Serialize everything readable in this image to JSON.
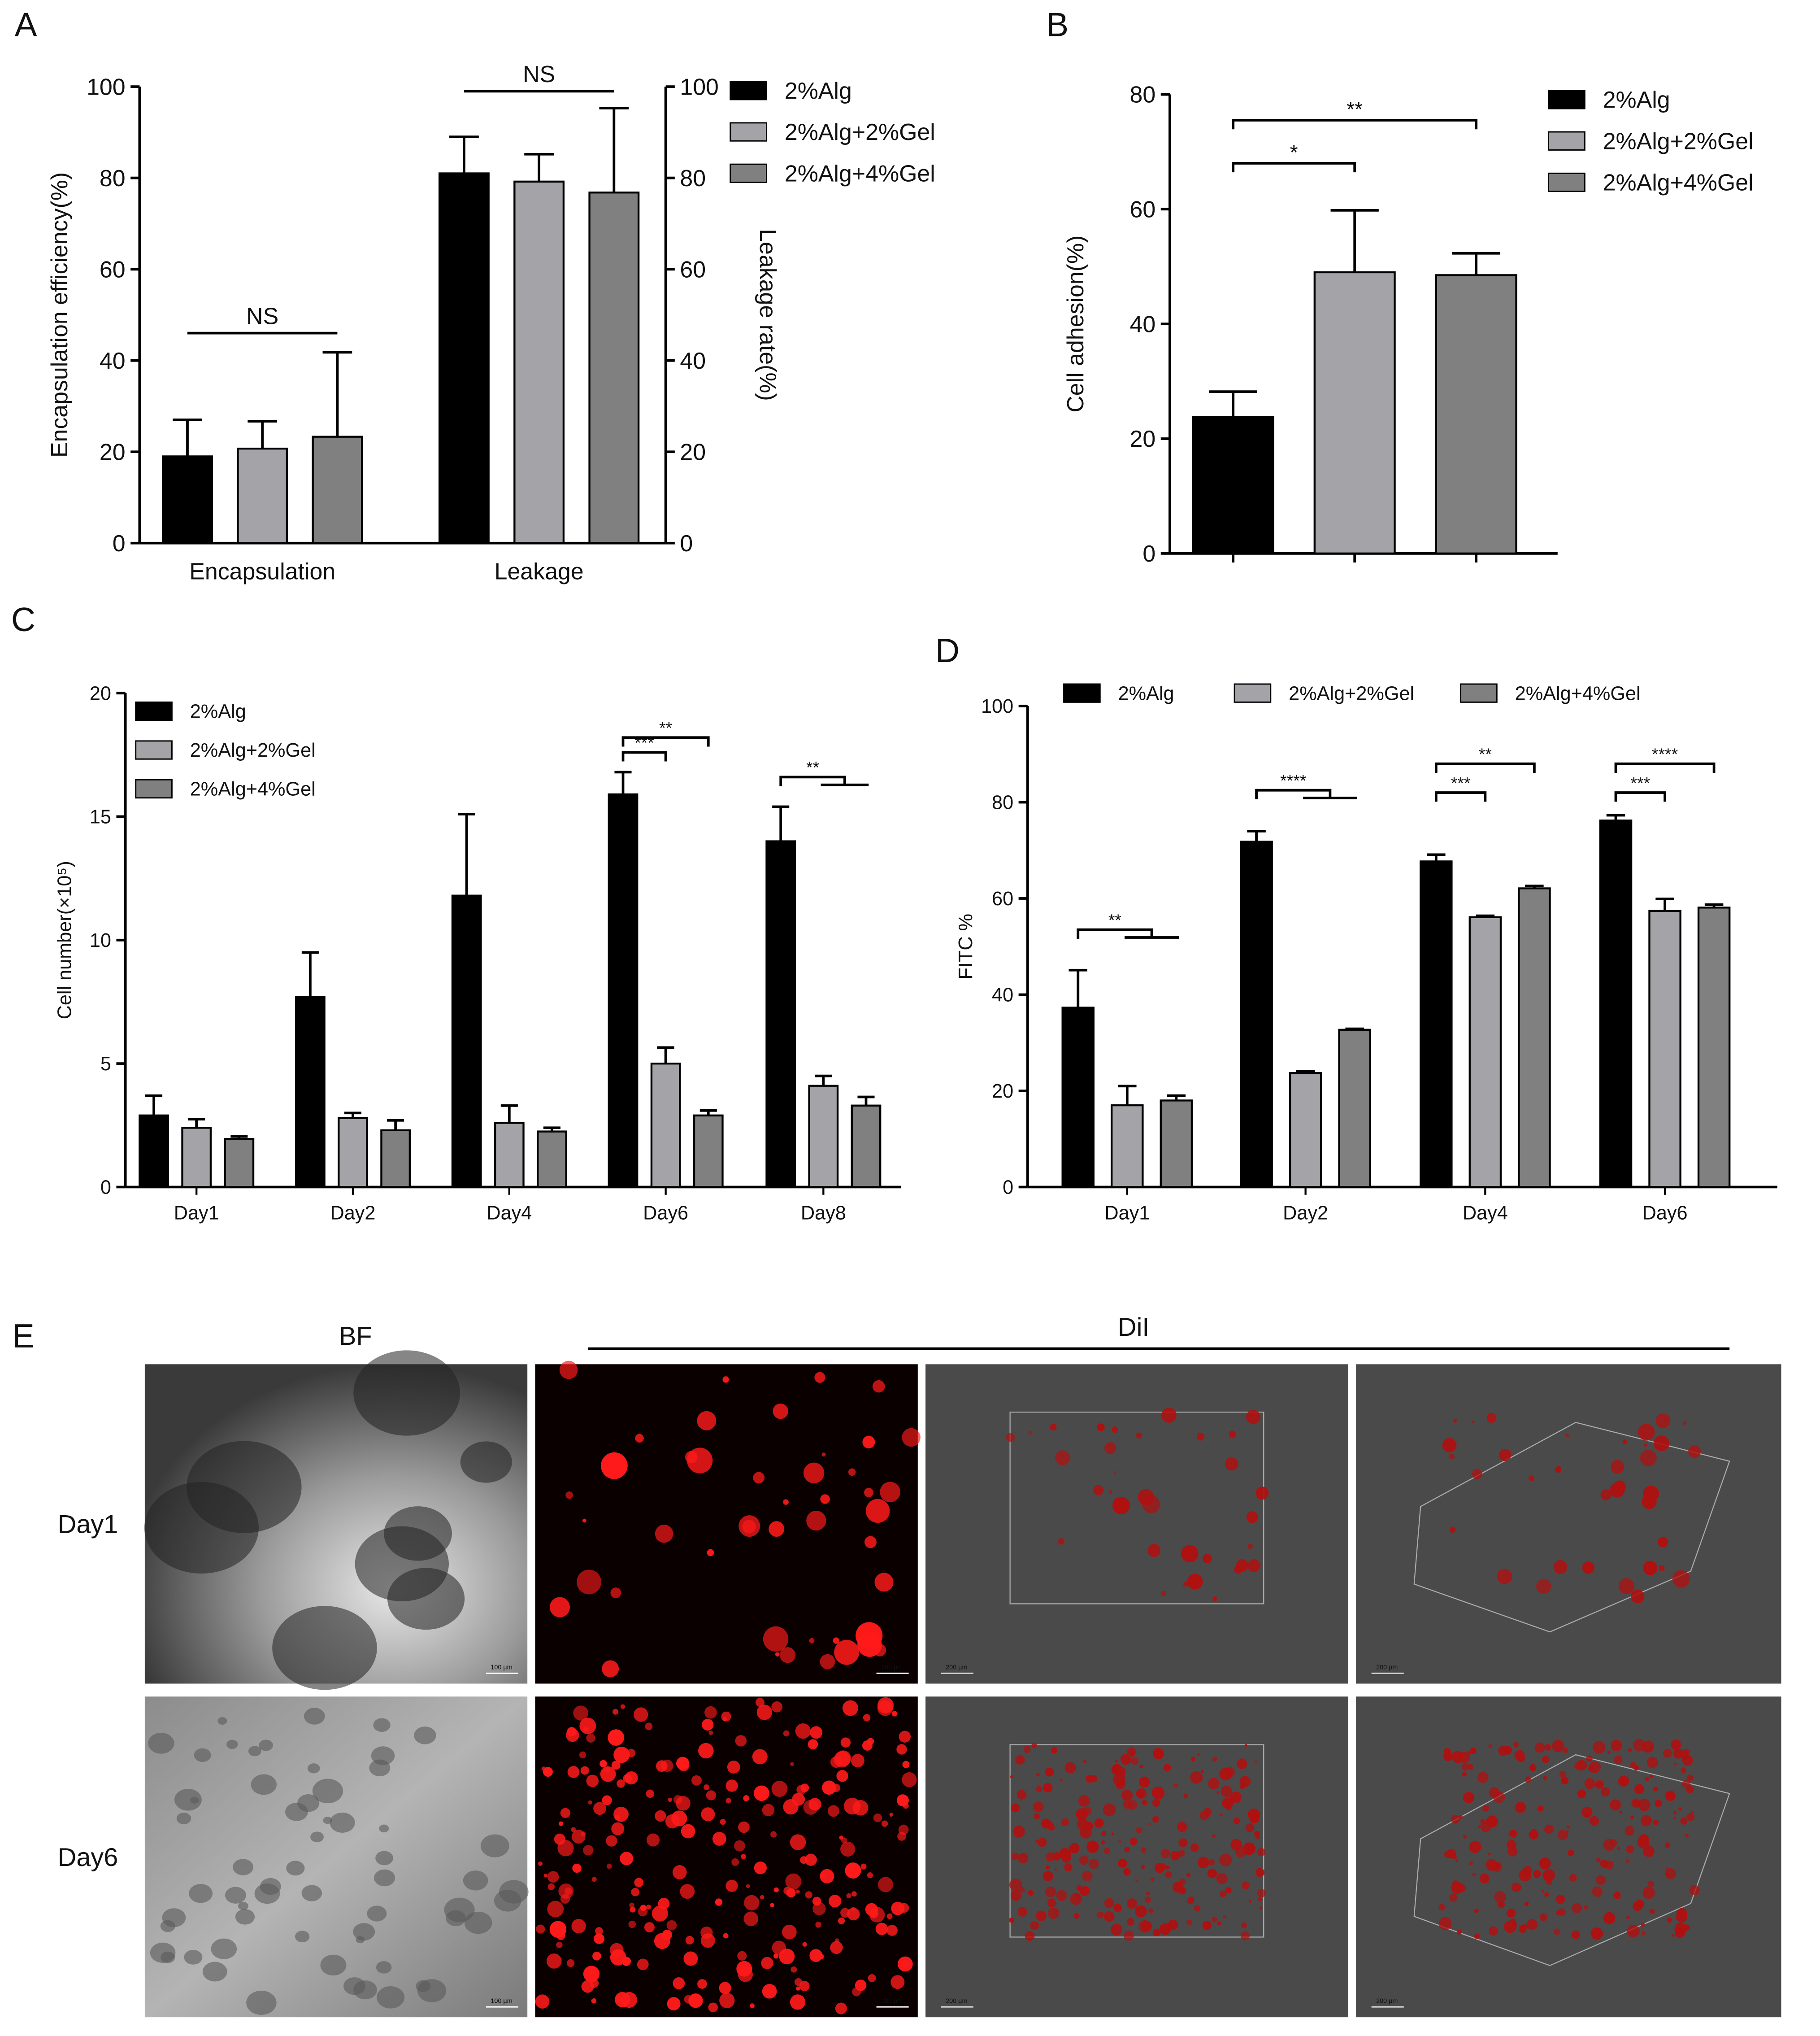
{
  "chart_data": [
    {
      "panel": "A",
      "type": "bar",
      "ylabel": "Encapsulation efficiency(%)",
      "y2label": "Leakage rate(%)",
      "categories": [
        "Encapsulation",
        "Leakage"
      ],
      "series": [
        {
          "name": "2%Alg",
          "color": "#000000",
          "values": [
            19,
            81
          ],
          "errors": [
            8,
            8
          ]
        },
        {
          "name": "2%Alg+2%Gel",
          "color": "#a4a4a8",
          "values": [
            20.7,
            79.2
          ],
          "errors": [
            6,
            6
          ]
        },
        {
          "name": "2%Alg+4%Gel",
          "color": "#808080",
          "values": [
            23.3,
            76.8
          ],
          "errors": [
            18.5,
            18.5
          ]
        }
      ],
      "ylim": [
        0,
        100
      ],
      "yticks": [
        0,
        20,
        40,
        60,
        80,
        100
      ],
      "y2lim": [
        0,
        100
      ],
      "y2ticks": [
        0,
        20,
        40,
        60,
        80,
        100
      ],
      "legend": "right",
      "bracket_ends": false,
      "annotations": [
        {
          "text": "NS",
          "category": 0,
          "from": 0,
          "to": [
            2
          ],
          "y": 46
        },
        {
          "text": "NS",
          "category": 1,
          "from": 0,
          "to": [
            2
          ],
          "y": 99
        }
      ]
    },
    {
      "panel": "B",
      "type": "bar",
      "ylabel": "Cell adhesion(%)",
      "categories": [
        null
      ],
      "series": [
        {
          "name": "2%Alg",
          "color": "#000000",
          "values": [
            23.8
          ],
          "errors": [
            4.4
          ]
        },
        {
          "name": "2%Alg+2%Gel",
          "color": "#a4a4a8",
          "values": [
            49
          ],
          "errors": [
            10.8
          ]
        },
        {
          "name": "2%Alg+4%Gel",
          "color": "#808080",
          "values": [
            48.5
          ],
          "errors": [
            3.8
          ]
        }
      ],
      "ylim": [
        0,
        80
      ],
      "yticks": [
        0,
        20,
        40,
        60,
        80
      ],
      "legend": "right",
      "bracket_ends": true,
      "annotations": [
        {
          "text": "*",
          "category": 0,
          "from": 0,
          "to": [
            1
          ],
          "y": 68
        },
        {
          "text": "**",
          "category": 0,
          "from": 0,
          "to": [
            2
          ],
          "y": 75.5
        }
      ]
    },
    {
      "panel": "C",
      "type": "bar",
      "ylabel": "Cell number(×10⁵)",
      "categories": [
        "Day1",
        "Day2",
        "Day4",
        "Day6",
        "Day8"
      ],
      "series": [
        {
          "name": "2%Alg",
          "color": "#000000",
          "values": [
            2.9,
            7.7,
            11.8,
            15.9,
            14.0
          ],
          "errors": [
            0.8,
            1.8,
            3.3,
            0.9,
            1.4
          ]
        },
        {
          "name": "2%Alg+2%Gel",
          "color": "#a4a4a8",
          "values": [
            2.4,
            2.8,
            2.6,
            5.0,
            4.1
          ],
          "errors": [
            0.35,
            0.2,
            0.7,
            0.65,
            0.4
          ]
        },
        {
          "name": "2%Alg+4%Gel",
          "color": "#808080",
          "values": [
            1.95,
            2.3,
            2.25,
            2.9,
            3.3
          ],
          "errors": [
            0.1,
            0.4,
            0.15,
            0.2,
            0.35
          ]
        }
      ],
      "ylim": [
        0,
        20
      ],
      "yticks": [
        0,
        5,
        10,
        15,
        20
      ],
      "legend": "top-left",
      "bracket_ends": true,
      "annotations": [
        {
          "text": "***",
          "category": 3,
          "from": 0,
          "to": [
            1
          ],
          "y": 17.6
        },
        {
          "text": "**",
          "category": 3,
          "from": 0,
          "to": [
            2
          ],
          "y": 18.2
        },
        {
          "text": "**",
          "category": 4,
          "from": 0,
          "to": [
            1,
            2
          ],
          "y": 16.6
        }
      ]
    },
    {
      "panel": "D",
      "type": "bar",
      "ylabel": "FITC %",
      "categories": [
        "Day1",
        "Day2",
        "Day4",
        "Day6"
      ],
      "series": [
        {
          "name": "2%Alg",
          "color": "#000000",
          "values": [
            37.3,
            71.8,
            67.7,
            76.2
          ],
          "errors": [
            7.8,
            2.2,
            1.4,
            1.1
          ]
        },
        {
          "name": "2%Alg+2%Gel",
          "color": "#a4a4a8",
          "values": [
            17,
            23.7,
            56.1,
            57.4
          ],
          "errors": [
            4,
            0.4,
            0.3,
            2.5
          ]
        },
        {
          "name": "2%Alg+4%Gel",
          "color": "#808080",
          "values": [
            18,
            32.7,
            62.1,
            58.1
          ],
          "errors": [
            1,
            0.2,
            0.5,
            0.6
          ]
        }
      ],
      "ylim": [
        0,
        100
      ],
      "yticks": [
        0,
        20,
        40,
        60,
        80,
        100
      ],
      "legend": "top",
      "bracket_ends": true,
      "annotations": [
        {
          "text": "**",
          "category": 0,
          "from": 0,
          "to": [
            1,
            2
          ],
          "y": 53.5
        },
        {
          "text": "****",
          "category": 1,
          "from": 0,
          "to": [
            1,
            2
          ],
          "y": 82.5
        },
        {
          "text": "***",
          "category": 2,
          "from": 0,
          "to": [
            1
          ],
          "y": 82
        },
        {
          "text": "**",
          "category": 2,
          "from": 0,
          "to": [
            2
          ],
          "y": 88
        },
        {
          "text": "***",
          "category": 3,
          "from": 0,
          "to": [
            1
          ],
          "y": 82
        },
        {
          "text": "****",
          "category": 3,
          "from": 0,
          "to": [
            2
          ],
          "y": 88
        }
      ]
    }
  ],
  "image_panel": {
    "panel": "E",
    "columns": [
      "BF",
      "DiI"
    ],
    "rows": [
      "Day1",
      "Day6"
    ],
    "scale_labels": [
      "100 µm",
      "100 µm",
      "200 µm",
      "200 µm"
    ]
  }
}
